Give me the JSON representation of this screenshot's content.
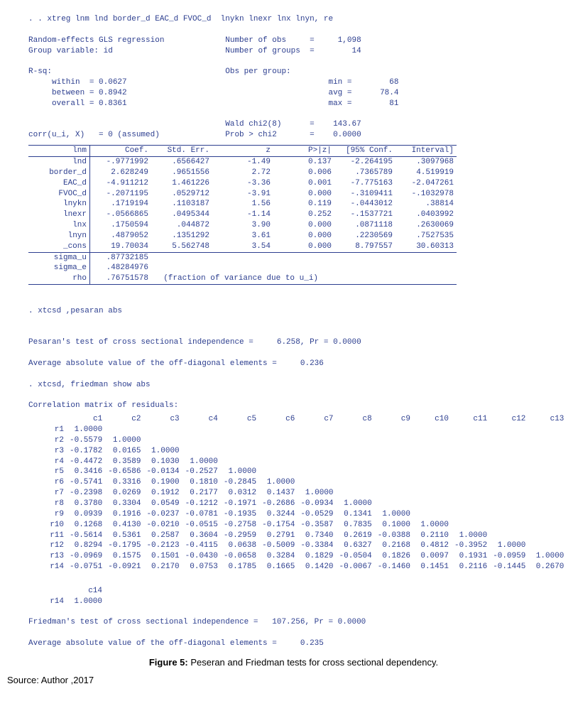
{
  "cmd1": ". . xtreg lnm lnd border_d EAC_d FVOC_d  lnykn lnexr lnx lnyn, re",
  "hdr": {
    "l1a": "Random-effects GLS regression",
    "l1b": "Number of obs     =",
    "l1c": "1,098",
    "l2a": "Group variable: id",
    "l2b": "Number of groups  =",
    "l2c": "14",
    "rsq": "R-sq:",
    "obs": "Obs per group:",
    "wa": "     within  = 0.0627",
    "wb": "min =",
    "wc": "68",
    "ba": "     between = 0.8942",
    "bb": "avg =",
    "bc": "78.4",
    "oa": "     overall = 0.8361",
    "ob": "max =",
    "oc": "81",
    "chia": "Wald chi2(8)      =",
    "chib": "143.67",
    "corra": "corr(u_i, X)   = 0 (assumed)",
    "corrb": "Prob > chi2       =",
    "corrc": "0.0000"
  },
  "cols": [
    "lnm",
    "Coef.",
    "Std. Err.",
    "z",
    "P>|z|",
    "[95% Conf.",
    "Interval]"
  ],
  "rows": [
    [
      "lnd",
      "-.9771992",
      ".6566427",
      "-1.49",
      "0.137",
      "-2.264195",
      ".3097968"
    ],
    [
      "border_d",
      "2.628249",
      ".9651556",
      "2.72",
      "0.006",
      ".7365789",
      "4.519919"
    ],
    [
      "EAC_d",
      "-4.911212",
      "1.461226",
      "-3.36",
      "0.001",
      "-7.775163",
      "-2.047261"
    ],
    [
      "FVOC_d",
      "-.2071195",
      ".0529712",
      "-3.91",
      "0.000",
      "-.3109411",
      "-.1032978"
    ],
    [
      "lnykn",
      ".1719194",
      ".1103187",
      "1.56",
      "0.119",
      "-.0443012",
      ".38814"
    ],
    [
      "lnexr",
      "-.0566865",
      ".0495344",
      "-1.14",
      "0.252",
      "-.1537721",
      ".0403992"
    ],
    [
      "lnx",
      ".1750594",
      ".044872",
      "3.90",
      "0.000",
      ".0871118",
      ".2630069"
    ],
    [
      "lnyn",
      ".4879052",
      ".1351292",
      "3.61",
      "0.000",
      ".2230569",
      ".7527535"
    ],
    [
      "_cons",
      "19.70034",
      "5.562748",
      "3.54",
      "0.000",
      "8.797557",
      "30.60313"
    ]
  ],
  "sig": [
    [
      "sigma_u",
      ".87732185",
      "",
      "",
      "",
      "",
      ""
    ],
    [
      "sigma_e",
      ".48284976",
      "",
      "",
      "",
      "",
      ""
    ],
    [
      "rho",
      ".76751578",
      "  (fraction of variance due to u_i)",
      "",
      "",
      "",
      ""
    ]
  ],
  "cmd2": ". xtcsd ,pesaran abs",
  "pesaran_line": "Pesaran's test of cross sectional independence =     6.258, Pr = 0.0000",
  "avg_off1": "Average absolute value of the off-diagonal elements =     0.236",
  "cmd3": ". xtcsd, friedman show abs",
  "corr_title": "Correlation matrix of residuals:",
  "corr_headers": [
    "c1",
    "c2",
    "c3",
    "c4",
    "c5",
    "c6",
    "c7",
    "c8",
    "c9",
    "c10",
    "c11",
    "c12",
    "c13"
  ],
  "corr_rows": [
    {
      "lbl": "r1",
      "v": [
        "1.0000"
      ]
    },
    {
      "lbl": "r2",
      "v": [
        "-0.5579",
        "1.0000"
      ]
    },
    {
      "lbl": "r3",
      "v": [
        "-0.1782",
        "0.0165",
        "1.0000"
      ]
    },
    {
      "lbl": "r4",
      "v": [
        "-0.4472",
        "0.3589",
        "0.1030",
        "1.0000"
      ]
    },
    {
      "lbl": "r5",
      "v": [
        "0.3416",
        "-0.6586",
        "-0.0134",
        "-0.2527",
        "1.0000"
      ]
    },
    {
      "lbl": "r6",
      "v": [
        "-0.5741",
        "0.3316",
        "0.1900",
        "0.1810",
        "-0.2845",
        "1.0000"
      ]
    },
    {
      "lbl": "r7",
      "v": [
        "-0.2398",
        "0.0269",
        "0.1912",
        "0.2177",
        "0.0312",
        "0.1437",
        "1.0000"
      ]
    },
    {
      "lbl": "r8",
      "v": [
        "0.3780",
        "0.3304",
        "0.0549",
        "-0.1212",
        "-0.1971",
        "-0.2686",
        "-0.0934",
        "1.0000"
      ]
    },
    {
      "lbl": "r9",
      "v": [
        "0.0939",
        "0.1916",
        "-0.0237",
        "-0.0781",
        "-0.1935",
        "0.3244",
        "-0.0529",
        "0.1341",
        "1.0000"
      ]
    },
    {
      "lbl": "r10",
      "v": [
        "0.1268",
        "0.4130",
        "-0.0210",
        "-0.0515",
        "-0.2758",
        "-0.1754",
        "-0.3587",
        "0.7835",
        "0.1000",
        "1.0000"
      ]
    },
    {
      "lbl": "r11",
      "v": [
        "-0.5614",
        "0.5361",
        "0.2587",
        "0.3604",
        "-0.2959",
        "0.2791",
        "0.7340",
        "0.2619",
        "-0.0388",
        "0.2110",
        "1.0000"
      ]
    },
    {
      "lbl": "r12",
      "v": [
        "0.8294",
        "-0.1795",
        "-0.2123",
        "-0.4115",
        "0.0638",
        "-0.5009",
        "-0.3384",
        "0.6327",
        "0.2168",
        "0.4812",
        "-0.3952",
        "1.0000"
      ]
    },
    {
      "lbl": "r13",
      "v": [
        "-0.0969",
        "0.1575",
        "0.1501",
        "-0.0430",
        "-0.0658",
        "0.3284",
        "0.1829",
        "-0.0504",
        "0.1826",
        "0.0097",
        "0.1931",
        "-0.0959",
        "1.0000"
      ]
    },
    {
      "lbl": "r14",
      "v": [
        "-0.0751",
        "-0.0921",
        "0.2170",
        "0.0753",
        "0.1785",
        "0.1665",
        "0.1420",
        "-0.0067",
        "-0.1460",
        "0.1451",
        "0.2116",
        "-0.1445",
        "0.2670"
      ]
    }
  ],
  "corr2_hdr": "c14",
  "corr2_row_lbl": "r14",
  "corr2_val": "1.0000",
  "friedman_line": "Friedman's test of cross sectional independence =   107.256, Pr = 0.0000",
  "avg_off2": "Average absolute value of the off-diagonal elements =     0.235",
  "caption_bold": "Figure 5:",
  "caption_rest": " Peseran  and  Friedman tests for cross sectional dependency.",
  "source": "Source: Author ,2017"
}
